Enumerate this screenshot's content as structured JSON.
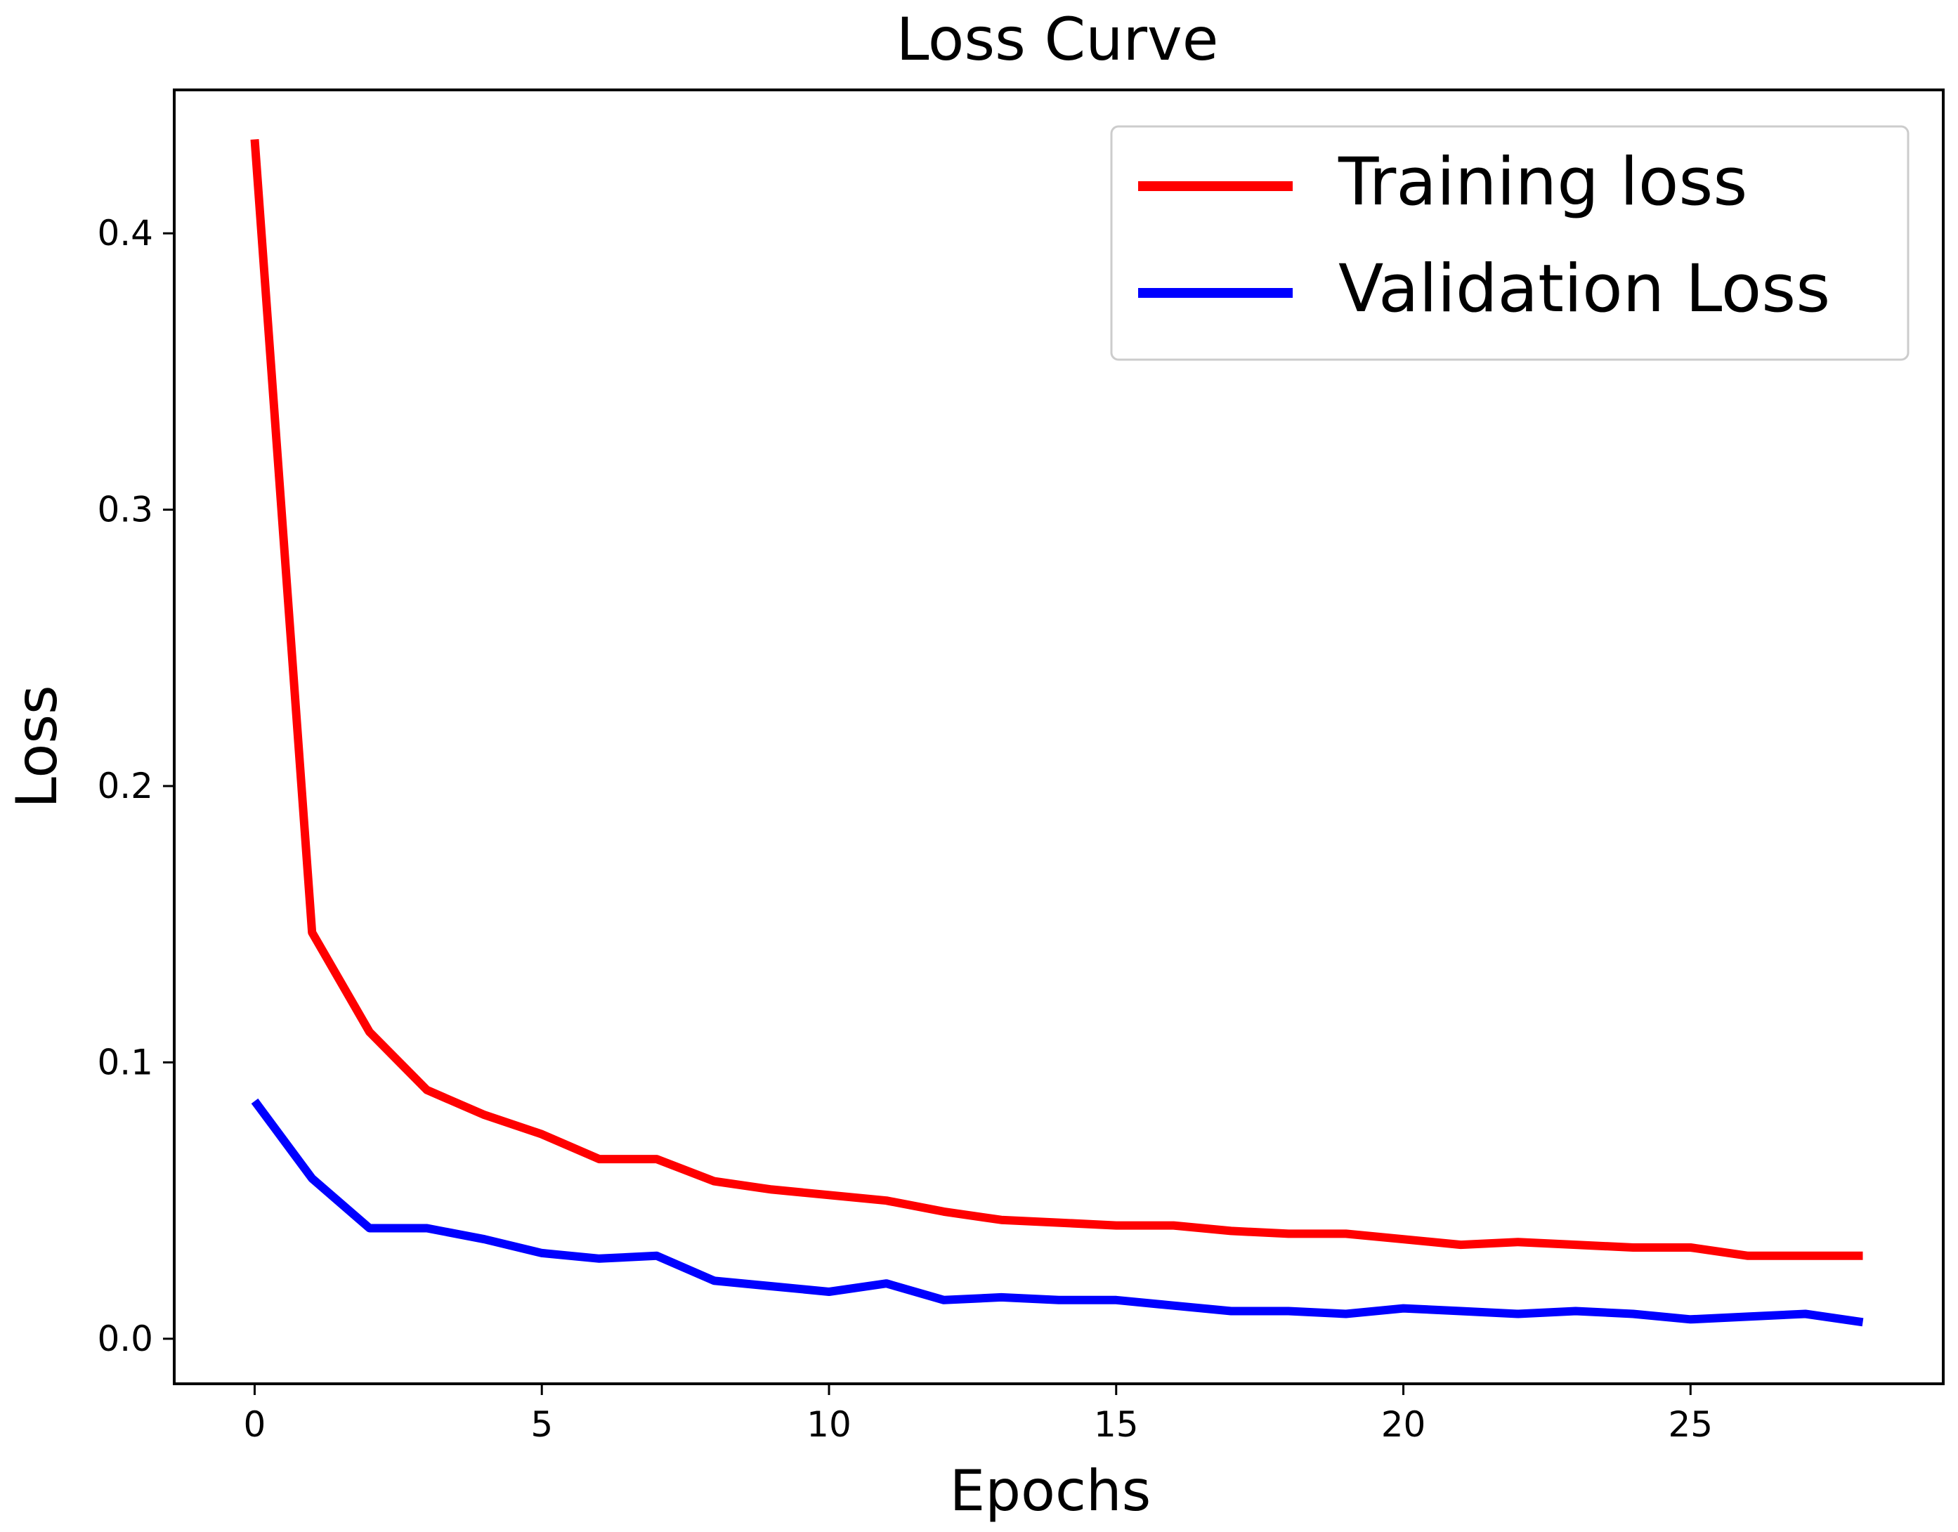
{
  "chart_data": {
    "type": "line",
    "title": "Loss Curve",
    "xlabel": "Epochs",
    "ylabel": "Loss",
    "xlim": [
      -1.4,
      29.4
    ],
    "ylim": [
      -0.0163,
      0.4519
    ],
    "xticks": [
      0,
      5,
      10,
      15,
      20,
      25
    ],
    "xtick_labels": [
      "0",
      "5",
      "10",
      "15",
      "20",
      "25"
    ],
    "yticks": [
      0.0,
      0.1,
      0.2,
      0.3,
      0.4
    ],
    "ytick_labels": [
      "0.0",
      "0.1",
      "0.2",
      "0.3",
      "0.4"
    ],
    "grid": false,
    "legend_position": "top-right",
    "x": [
      0,
      1,
      2,
      3,
      4,
      5,
      6,
      7,
      8,
      9,
      10,
      11,
      12,
      13,
      14,
      15,
      16,
      17,
      18,
      19,
      20,
      21,
      22,
      23,
      24,
      25,
      26,
      27,
      28
    ],
    "series": [
      {
        "name": "Training loss",
        "color": "#ff0000",
        "values": [
          0.434,
          0.147,
          0.111,
          0.09,
          0.081,
          0.074,
          0.065,
          0.065,
          0.057,
          0.054,
          0.052,
          0.05,
          0.046,
          0.043,
          0.042,
          0.041,
          0.041,
          0.039,
          0.038,
          0.038,
          0.036,
          0.034,
          0.035,
          0.034,
          0.033,
          0.033,
          0.03,
          0.03,
          0.03
        ]
      },
      {
        "name": "Validation Loss",
        "color": "#0000ff",
        "values": [
          0.086,
          0.058,
          0.04,
          0.04,
          0.036,
          0.031,
          0.029,
          0.03,
          0.021,
          0.019,
          0.017,
          0.02,
          0.014,
          0.015,
          0.014,
          0.014,
          0.012,
          0.01,
          0.01,
          0.009,
          0.011,
          0.01,
          0.009,
          0.01,
          0.009,
          0.007,
          0.008,
          0.009,
          0.006
        ]
      }
    ]
  }
}
